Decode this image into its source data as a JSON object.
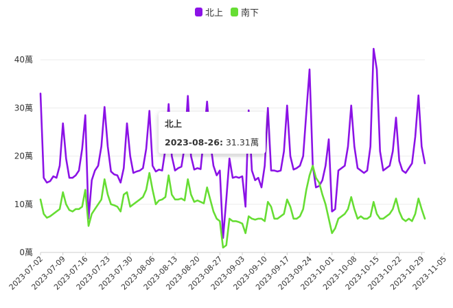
{
  "chart_data": {
    "type": "line",
    "title": "",
    "xlabel": "",
    "ylabel": "",
    "ylim": [
      0,
      45
    ],
    "yticks": [
      "0萬",
      "10萬",
      "20萬",
      "30萬",
      "40萬"
    ],
    "grid": "horizontal",
    "legend_position": "top-center",
    "x_start": "2023-07-02",
    "x_end": "2023-11-06",
    "x_tick_labels": [
      "2023-07-02",
      "2023-07-09",
      "2023-07-16",
      "2023-07-23",
      "2023-07-30",
      "2023-08-06",
      "2023-08-13",
      "2023-08-20",
      "2023-08-27",
      "2023-09-03",
      "2023-09-10",
      "2023-09-17",
      "2023-09-24",
      "2023-10-01",
      "2023-10-08",
      "2023-10-15",
      "2023-10-22",
      "2023-10-29",
      "2023-11-05"
    ],
    "series": [
      {
        "name": "北上",
        "color": "#8b12e6",
        "values": [
          33,
          15.5,
          14.5,
          14.8,
          15.8,
          15.5,
          18,
          26.8,
          19.5,
          15.5,
          15.5,
          16,
          17,
          21.5,
          28.5,
          7,
          15,
          17,
          18,
          22,
          30.2,
          22,
          16.8,
          16.2,
          16,
          14.5,
          17.5,
          26.8,
          20,
          16.5,
          16.8,
          17,
          17.5,
          21.5,
          29.4,
          18,
          16.8,
          17.2,
          17,
          21.5,
          30.8,
          20,
          17,
          17.5,
          17.8,
          22,
          32.5,
          20,
          17.2,
          17.5,
          17.3,
          24,
          31.31,
          23,
          18,
          16,
          17,
          3,
          11,
          19.5,
          15.5,
          15.7,
          15.5,
          15.8,
          9.5,
          29.5,
          17,
          15,
          15.5,
          13.5,
          18,
          30,
          17,
          17,
          16.8,
          17,
          21,
          30.5,
          20,
          17.2,
          17.5,
          18,
          20,
          29,
          38,
          18,
          13.5,
          13.8,
          15,
          18,
          23.5,
          8.5,
          9,
          17,
          17.5,
          18,
          22,
          30.5,
          22,
          17.5,
          17,
          16.5,
          17,
          22,
          42.3,
          38,
          21,
          17,
          17.5,
          18,
          21,
          28,
          19,
          17,
          16.5,
          17.5,
          18.5,
          24,
          32.6,
          22,
          18.5
        ]
      },
      {
        "name": "南下",
        "color": "#66dd33",
        "values": [
          11,
          8,
          7.2,
          7.5,
          8,
          8.5,
          9,
          12.5,
          10,
          8.8,
          8.5,
          9,
          9,
          9.5,
          13,
          5.5,
          8,
          9,
          10,
          11,
          15.2,
          12,
          10,
          9.8,
          9.5,
          8.5,
          12,
          12.5,
          9.5,
          10,
          10.5,
          11,
          11.5,
          13,
          16.5,
          13,
          10,
          10.8,
          11,
          11.5,
          16,
          12,
          11,
          11,
          11.2,
          10.8,
          15.2,
          12,
          10.5,
          10.8,
          10.5,
          10.2,
          13.5,
          11,
          8.5,
          7,
          6.5,
          1,
          1.5,
          7,
          6.5,
          6.5,
          6.3,
          6,
          4,
          7.5,
          7,
          6.8,
          7,
          7,
          6.5,
          10.5,
          9.5,
          7,
          7,
          7.5,
          8,
          11,
          9.5,
          7,
          7,
          7.5,
          9,
          13,
          16,
          18,
          15.5,
          14.5,
          12,
          10,
          7,
          4,
          5,
          7,
          7.5,
          8,
          9,
          11.5,
          9,
          7,
          7.5,
          7,
          7,
          7.5,
          10.5,
          8,
          7,
          7,
          7.5,
          8,
          9,
          11.2,
          8.5,
          7,
          6.5,
          7,
          6.5,
          8,
          11.2,
          9,
          7
        ]
      }
    ],
    "tooltip": {
      "title": "北上",
      "date": "2023-08-26:",
      "value": "31.31萬"
    }
  }
}
